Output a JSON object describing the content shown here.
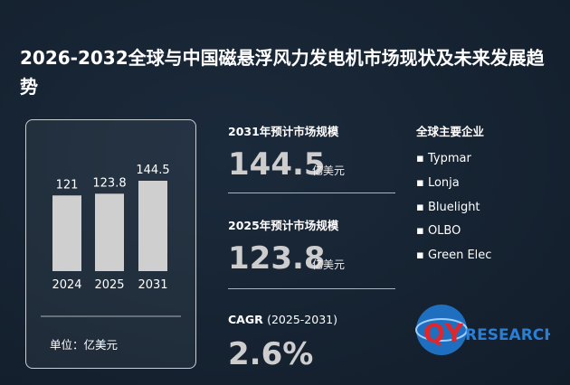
{
  "title": "2026-2032全球与中国磁悬浮风力发电机市场现状及未来发展趋势",
  "chart_data": {
    "type": "bar",
    "categories": [
      "2024",
      "2025",
      "2031"
    ],
    "values": [
      121,
      123.8,
      144.5
    ],
    "color": "#cfcfcf",
    "unit_label": "单位：亿美元"
  },
  "stats": [
    {
      "label": "2031年预计市场规模",
      "value": "144.5",
      "unit": "亿美元"
    },
    {
      "label": "2025年预计市场规模",
      "value": "123.8",
      "unit": "亿美元"
    }
  ],
  "cagr": {
    "label": "CAGR",
    "period": "(2025-2031)",
    "value": "2.6%"
  },
  "companies": {
    "title": "全球主要企业",
    "items": [
      "Typmar",
      "Lonja",
      "Bluelight",
      "OLBO",
      "Green Elec"
    ]
  },
  "logo": {
    "mark": "QY",
    "text": "RESEARCH"
  }
}
